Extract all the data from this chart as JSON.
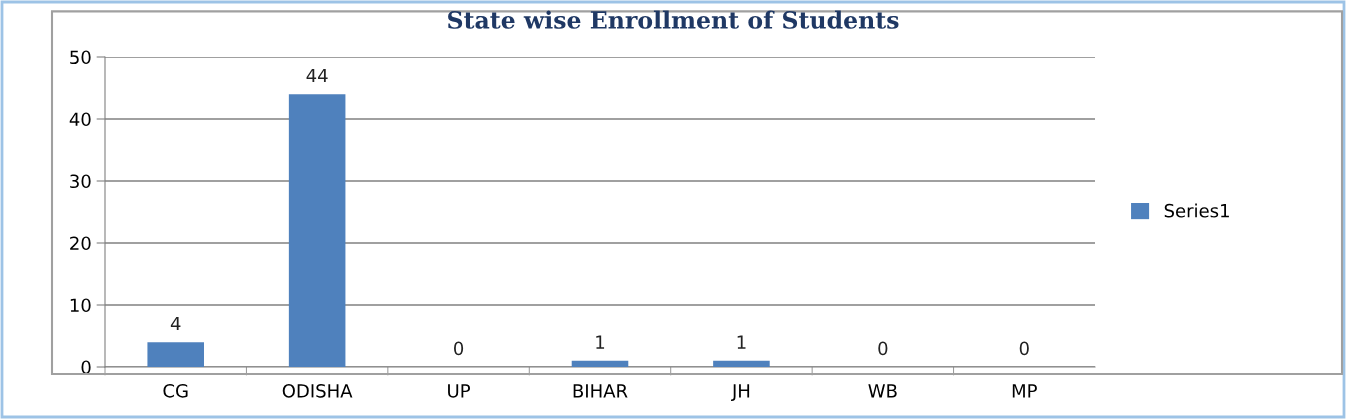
{
  "chart_data": {
    "type": "bar",
    "title": "State wise Enrollment of Students",
    "categories": [
      "CG",
      "ODISHA",
      "UP",
      "BIHAR",
      "JH",
      "WB",
      "MP"
    ],
    "series": [
      {
        "name": "Series1",
        "color": "#4f81bd",
        "values": [
          4,
          44,
          0,
          1,
          1,
          0,
          0
        ]
      }
    ],
    "ylim": [
      0,
      50
    ],
    "yticks": [
      0,
      10,
      20,
      30,
      40,
      50
    ],
    "grid": "y",
    "legend": "right",
    "data_labels": true
  }
}
